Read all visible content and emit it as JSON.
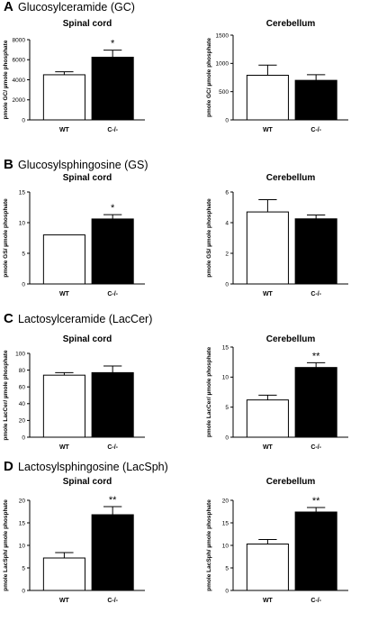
{
  "panels": [
    {
      "letter": "A",
      "title": "Glucosylceramide (GC)"
    },
    {
      "letter": "B",
      "title": "Glucosylsphingosine (GS)"
    },
    {
      "letter": "C",
      "title": "Lactosylceramide (LacCer)"
    },
    {
      "letter": "D",
      "title": "Lactosylsphingosine (LacSph)"
    }
  ],
  "chart_data": [
    {
      "type": "bar",
      "title": "Spinal cord",
      "ylabel": "pmole GC/ µmole phosphate",
      "categories": [
        "WT",
        "C-/-"
      ],
      "values": [
        4500,
        6250
      ],
      "errors": [
        300,
        700
      ],
      "ylim": [
        0,
        8000
      ],
      "yticks": [
        "0",
        "2000",
        "4000",
        "6000",
        "8000"
      ],
      "significance": [
        "",
        "*"
      ],
      "colors": [
        "#ffffff",
        "#000000"
      ]
    },
    {
      "type": "bar",
      "title": "Cerebellum",
      "ylabel": "pmole GC/ µmole phosphate",
      "categories": [
        "WT",
        "C-/-"
      ],
      "values": [
        790,
        700
      ],
      "errors": [
        180,
        100
      ],
      "ylim": [
        0,
        1500
      ],
      "yticks": [
        "0",
        "500",
        "1000",
        "1500"
      ],
      "significance": [
        "",
        ""
      ],
      "colors": [
        "#ffffff",
        "#000000"
      ]
    },
    {
      "type": "bar",
      "title": "Spinal cord",
      "ylabel": "pmole GS/ µmole phosphate",
      "categories": [
        "WT",
        "C-/-"
      ],
      "values": [
        8,
        10.6
      ],
      "errors": [
        0,
        0.7
      ],
      "ylim": [
        0,
        15
      ],
      "yticks": [
        "0",
        "5",
        "10",
        "15"
      ],
      "significance": [
        "",
        "*"
      ],
      "colors": [
        "#ffffff",
        "#000000"
      ]
    },
    {
      "type": "bar",
      "title": "Cerebellum",
      "ylabel": "pmole GS/ µmole phosphate",
      "categories": [
        "WT",
        "C-/-"
      ],
      "values": [
        4.7,
        4.25
      ],
      "errors": [
        0.8,
        0.25
      ],
      "ylim": [
        0,
        6
      ],
      "yticks": [
        "0",
        "2",
        "4",
        "6"
      ],
      "significance": [
        "",
        ""
      ],
      "colors": [
        "#ffffff",
        "#000000"
      ]
    },
    {
      "type": "bar",
      "title": "Spinal cord",
      "ylabel": "pmole LacCer/ µmole phosphate",
      "categories": [
        "WT",
        "C-/-"
      ],
      "values": [
        74,
        77
      ],
      "errors": [
        3,
        8
      ],
      "ylim": [
        0,
        100
      ],
      "yticks": [
        "0",
        "20",
        "40",
        "60",
        "80",
        "100"
      ],
      "significance": [
        "",
        ""
      ],
      "colors": [
        "#ffffff",
        "#000000"
      ]
    },
    {
      "type": "bar",
      "title": "Cerebellum",
      "ylabel": "pmole LacCer/ µmole phosphate",
      "categories": [
        "WT",
        "C-/-"
      ],
      "values": [
        6.2,
        11.6
      ],
      "errors": [
        0.8,
        0.8
      ],
      "ylim": [
        0,
        15
      ],
      "yticks": [
        "0",
        "5",
        "10",
        "15"
      ],
      "significance": [
        "",
        "**"
      ],
      "colors": [
        "#ffffff",
        "#000000"
      ]
    },
    {
      "type": "bar",
      "title": "Spinal cord",
      "ylabel": "pmole LacSph/ µmole phosphate",
      "categories": [
        "WT",
        "C-/-"
      ],
      "values": [
        7.2,
        16.8
      ],
      "errors": [
        1.2,
        1.8
      ],
      "ylim": [
        0,
        20
      ],
      "yticks": [
        "0",
        "5",
        "10",
        "15",
        "20"
      ],
      "significance": [
        "",
        "**"
      ],
      "colors": [
        "#ffffff",
        "#000000"
      ]
    },
    {
      "type": "bar",
      "title": "Cerebellum",
      "ylabel": "pmole LacSph/ µmole phosphate",
      "categories": [
        "WT",
        "C-/-"
      ],
      "values": [
        10.3,
        17.4
      ],
      "errors": [
        1.0,
        1.0
      ],
      "ylim": [
        0,
        20
      ],
      "yticks": [
        "0",
        "5",
        "10",
        "15",
        "20"
      ],
      "significance": [
        "",
        "**"
      ],
      "colors": [
        "#ffffff",
        "#000000"
      ]
    }
  ]
}
